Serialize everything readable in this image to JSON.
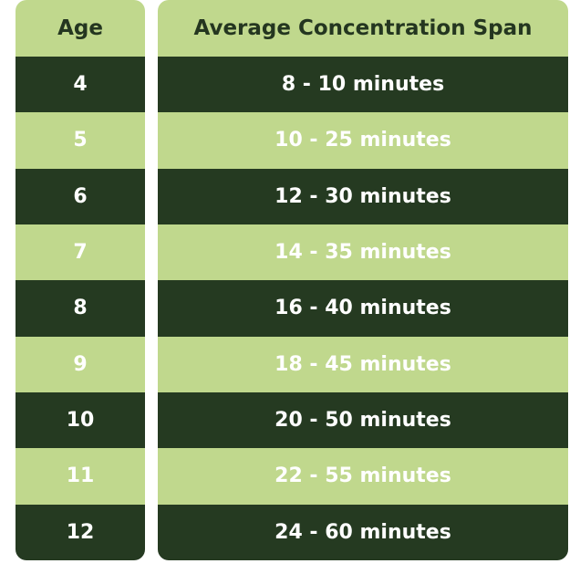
{
  "table": {
    "headers": {
      "age": "Age",
      "span": "Average Concentration Span"
    },
    "rows": [
      {
        "age": "4",
        "span": "8 - 10 minutes"
      },
      {
        "age": "5",
        "span": "10 - 25 minutes"
      },
      {
        "age": "6",
        "span": "12 - 30 minutes"
      },
      {
        "age": "7",
        "span": "14 - 35 minutes"
      },
      {
        "age": "8",
        "span": "16 - 40 minutes"
      },
      {
        "age": "9",
        "span": "18 - 45 minutes"
      },
      {
        "age": "10",
        "span": "20 - 50 minutes"
      },
      {
        "age": "11",
        "span": "22 - 55 minutes"
      },
      {
        "age": "12",
        "span": "24 - 60 minutes"
      }
    ]
  },
  "colors": {
    "dark_row": "#253a21",
    "light_row": "#c0d88d",
    "header_text": "#243620",
    "row_text": "#ffffff"
  }
}
